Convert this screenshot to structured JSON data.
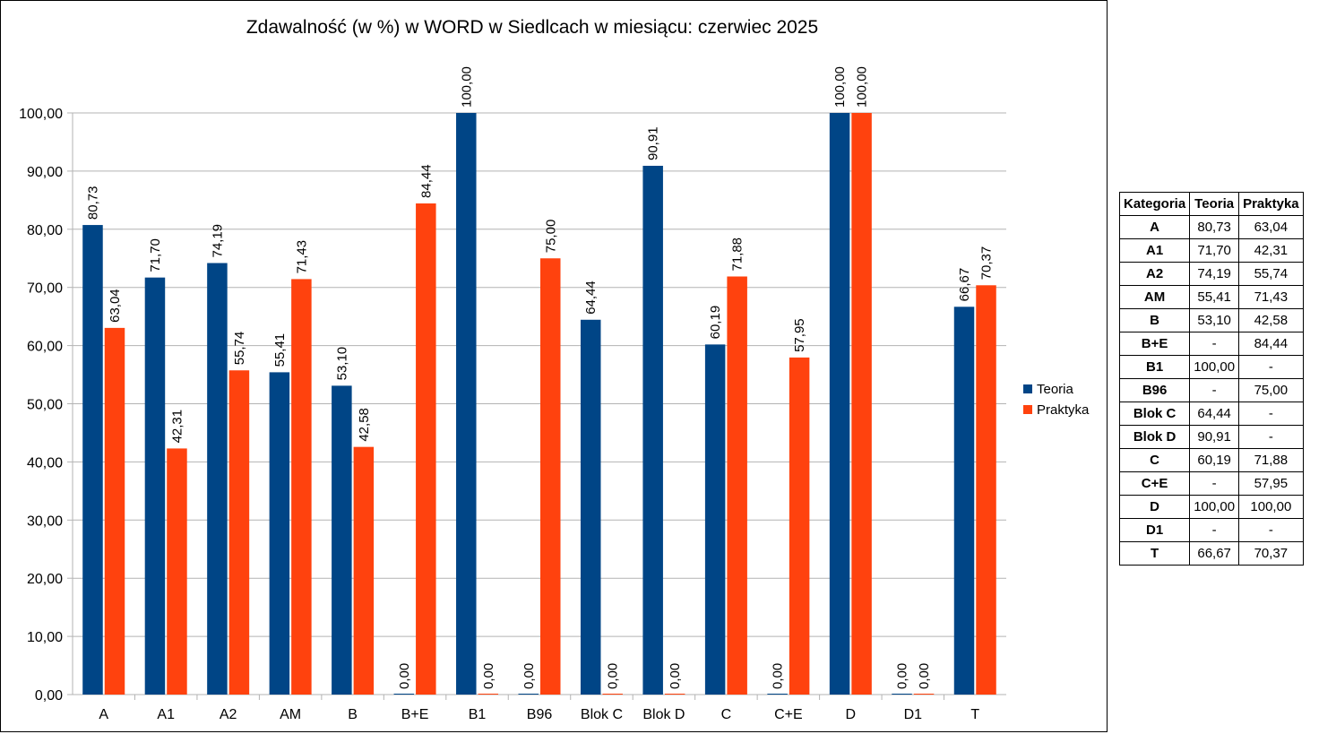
{
  "chart_data": {
    "type": "bar",
    "title": "Zdawalność (w %) w WORD w Siedlcach w miesiącu: czerwiec 2025",
    "categories": [
      "A",
      "A1",
      "A2",
      "AM",
      "B",
      "B+E",
      "B1",
      "B96",
      "Blok C",
      "Blok D",
      "C",
      "C+E",
      "D",
      "D1",
      "T"
    ],
    "series": [
      {
        "name": "Teoria",
        "color": "#004586",
        "values": [
          80.73,
          71.7,
          74.19,
          55.41,
          53.1,
          0,
          100.0,
          0,
          64.44,
          90.91,
          60.19,
          0,
          100.0,
          0,
          66.67
        ],
        "labels": [
          "80,73",
          "71,70",
          "74,19",
          "55,41",
          "53,10",
          "0,00",
          "100,00",
          "0,00",
          "64,44",
          "90,91",
          "60,19",
          "0,00",
          "100,00",
          "0,00",
          "66,67"
        ]
      },
      {
        "name": "Praktyka",
        "color": "#ff420e",
        "values": [
          63.04,
          42.31,
          55.74,
          71.43,
          42.58,
          84.44,
          0,
          75.0,
          0,
          0,
          71.88,
          57.95,
          100.0,
          0,
          70.37
        ],
        "labels": [
          "63,04",
          "42,31",
          "55,74",
          "71,43",
          "42,58",
          "84,44",
          "0,00",
          "75,00",
          "0,00",
          "0,00",
          "71,88",
          "57,95",
          "100,00",
          "0,00",
          "70,37"
        ]
      }
    ],
    "ylim": [
      0,
      100
    ],
    "yticks": [
      "0,00",
      "10,00",
      "20,00",
      "30,00",
      "40,00",
      "50,00",
      "60,00",
      "70,00",
      "80,00",
      "90,00",
      "100,00"
    ],
    "grid": true,
    "legend": "right"
  },
  "table": {
    "headers": [
      "Kategoria",
      "Teoria",
      "Praktyka"
    ],
    "rows": [
      [
        "A",
        "80,73",
        "63,04"
      ],
      [
        "A1",
        "71,70",
        "42,31"
      ],
      [
        "A2",
        "74,19",
        "55,74"
      ],
      [
        "AM",
        "55,41",
        "71,43"
      ],
      [
        "B",
        "53,10",
        "42,58"
      ],
      [
        "B+E",
        "-",
        "84,44"
      ],
      [
        "B1",
        "100,00",
        "-"
      ],
      [
        "B96",
        "-",
        "75,00"
      ],
      [
        "Blok C",
        "64,44",
        "-"
      ],
      [
        "Blok D",
        "90,91",
        "-"
      ],
      [
        "C",
        "60,19",
        "71,88"
      ],
      [
        "C+E",
        "-",
        "57,95"
      ],
      [
        "D",
        "100,00",
        "100,00"
      ],
      [
        "D1",
        "-",
        "-"
      ],
      [
        "T",
        "66,67",
        "70,37"
      ]
    ]
  }
}
